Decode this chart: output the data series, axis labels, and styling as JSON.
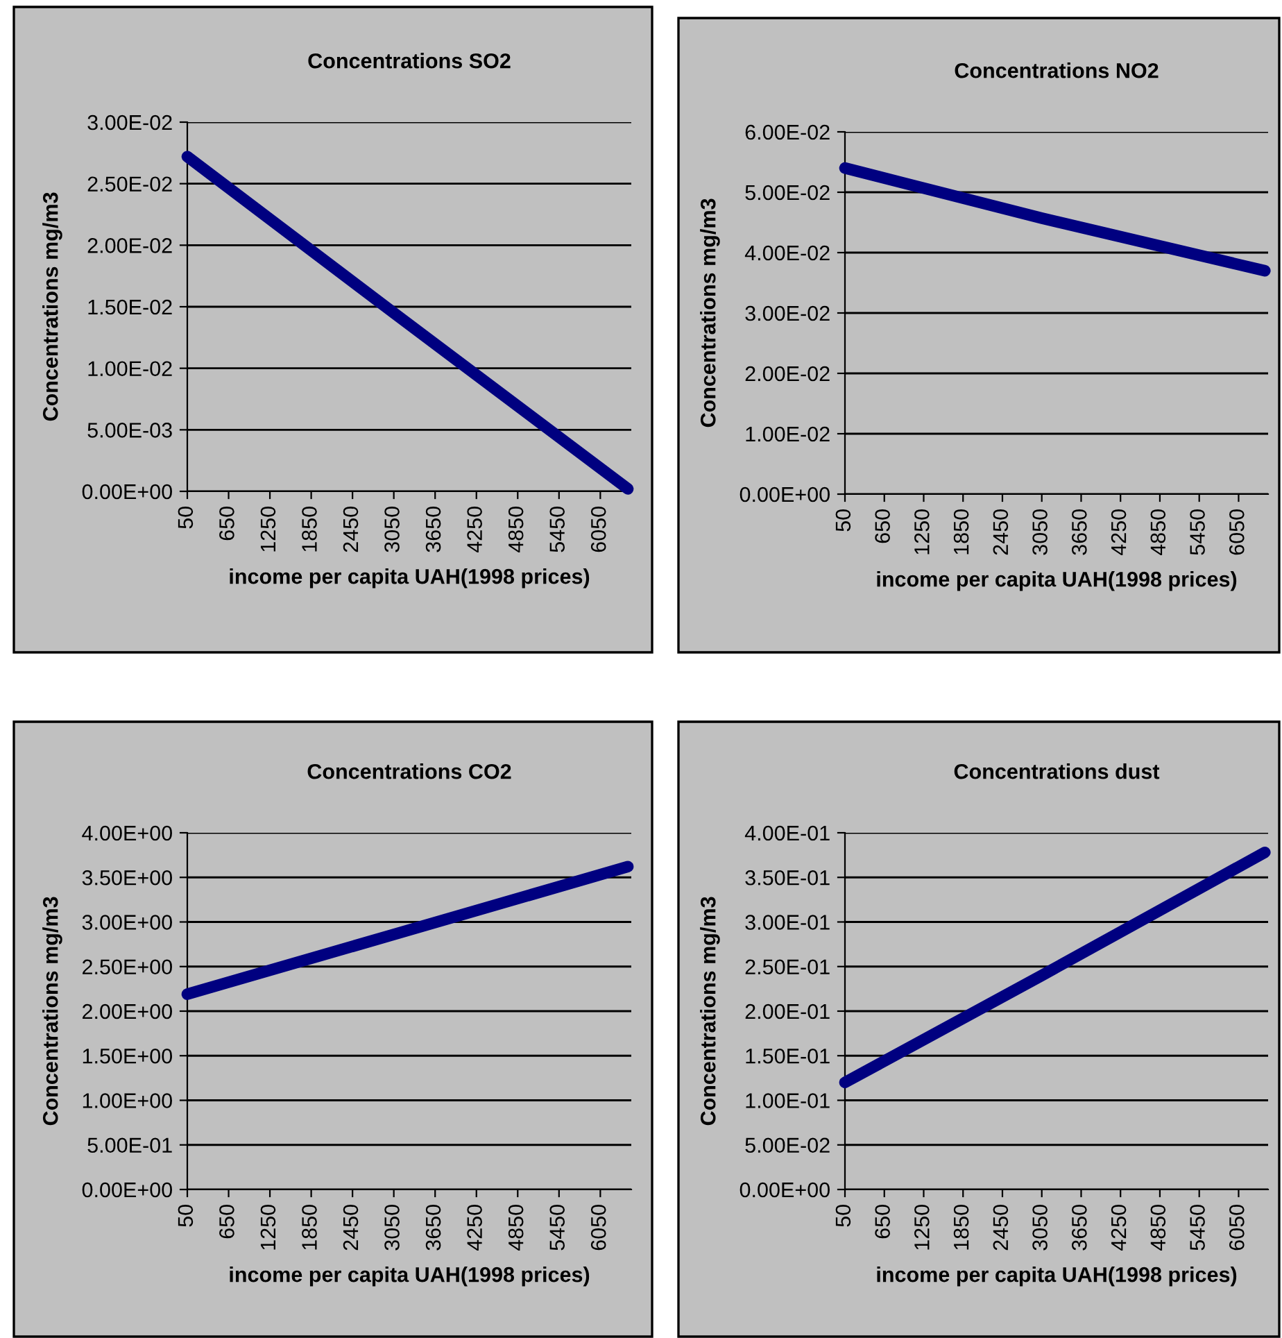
{
  "chart_data": [
    {
      "type": "line",
      "title": "Concentrations SO2",
      "xlabel": "income per capita UAH(1998 prices)",
      "ylabel": "Concentrations mg/m3",
      "x": [
        50,
        3050,
        6450
      ],
      "series": [
        {
          "color": "#000080",
          "values": [
            0.0272,
            0.0145,
            0.0002
          ]
        }
      ],
      "xlim": [
        50,
        6500
      ],
      "xticks": [
        50,
        650,
        1250,
        1850,
        2450,
        3050,
        3650,
        4250,
        4850,
        5450,
        6050
      ],
      "ylim": [
        0,
        0.03
      ],
      "yticks": [
        {
          "value": 0,
          "label": "0.00E+00"
        },
        {
          "value": 0.005,
          "label": "5.00E-03"
        },
        {
          "value": 0.01,
          "label": "1.00E-02"
        },
        {
          "value": 0.015,
          "label": "1.50E-02"
        },
        {
          "value": 0.02,
          "label": "2.00E-02"
        },
        {
          "value": 0.025,
          "label": "2.50E-02"
        },
        {
          "value": 0.03,
          "label": "3.00E-02"
        }
      ],
      "grid": "y"
    },
    {
      "type": "line",
      "title": "Concentrations NO2",
      "xlabel": "income per capita UAH(1998 prices)",
      "ylabel": "Concentrations mg/m3",
      "x": [
        50,
        3050,
        6450
      ],
      "series": [
        {
          "color": "#000080",
          "values": [
            0.054,
            0.0457,
            0.037
          ]
        }
      ],
      "xlim": [
        50,
        6500
      ],
      "xticks": [
        50,
        650,
        1250,
        1850,
        2450,
        3050,
        3650,
        4250,
        4850,
        5450,
        6050
      ],
      "ylim": [
        0,
        0.06
      ],
      "yticks": [
        {
          "value": 0,
          "label": "0.00E+00"
        },
        {
          "value": 0.01,
          "label": "1.00E-02"
        },
        {
          "value": 0.02,
          "label": "2.00E-02"
        },
        {
          "value": 0.03,
          "label": "3.00E-02"
        },
        {
          "value": 0.04,
          "label": "4.00E-02"
        },
        {
          "value": 0.05,
          "label": "5.00E-02"
        },
        {
          "value": 0.06,
          "label": "6.00E-02"
        }
      ],
      "grid": "y"
    },
    {
      "type": "line",
      "title": "Concentrations CO2",
      "xlabel": "income per capita UAH(1998 prices)",
      "ylabel": "Concentrations mg/m3",
      "x": [
        50,
        3050,
        6450
      ],
      "series": [
        {
          "color": "#000080",
          "values": [
            2.19,
            2.86,
            3.62
          ]
        }
      ],
      "xlim": [
        50,
        6500
      ],
      "xticks": [
        50,
        650,
        1250,
        1850,
        2450,
        3050,
        3650,
        4250,
        4850,
        5450,
        6050
      ],
      "ylim": [
        0,
        4
      ],
      "yticks": [
        {
          "value": 0,
          "label": "0.00E+00"
        },
        {
          "value": 0.5,
          "label": "5.00E-01"
        },
        {
          "value": 1,
          "label": "1.00E+00"
        },
        {
          "value": 1.5,
          "label": "1.50E+00"
        },
        {
          "value": 2,
          "label": "2.00E+00"
        },
        {
          "value": 2.5,
          "label": "2.50E+00"
        },
        {
          "value": 3,
          "label": "3.00E+00"
        },
        {
          "value": 3.5,
          "label": "3.50E+00"
        },
        {
          "value": 4,
          "label": "4.00E+00"
        }
      ],
      "grid": "y"
    },
    {
      "type": "line",
      "title": "Concentrations dust",
      "xlabel": "income per capita UAH(1998 prices)",
      "ylabel": "Concentrations mg/m3",
      "x": [
        50,
        3050,
        6450
      ],
      "series": [
        {
          "color": "#000080",
          "values": [
            0.12,
            0.24,
            0.378
          ]
        }
      ],
      "xlim": [
        50,
        6500
      ],
      "xticks": [
        50,
        650,
        1250,
        1850,
        2450,
        3050,
        3650,
        4250,
        4850,
        5450,
        6050
      ],
      "ylim": [
        0,
        0.4
      ],
      "yticks": [
        {
          "value": 0,
          "label": "0.00E+00"
        },
        {
          "value": 0.05,
          "label": "5.00E-02"
        },
        {
          "value": 0.1,
          "label": "1.00E-01"
        },
        {
          "value": 0.15,
          "label": "1.50E-01"
        },
        {
          "value": 0.2,
          "label": "2.00E-01"
        },
        {
          "value": 0.25,
          "label": "2.50E-01"
        },
        {
          "value": 0.3,
          "label": "3.00E-01"
        },
        {
          "value": 0.35,
          "label": "3.50E-01"
        },
        {
          "value": 0.4,
          "label": "4.00E-01"
        }
      ],
      "grid": "y"
    }
  ]
}
